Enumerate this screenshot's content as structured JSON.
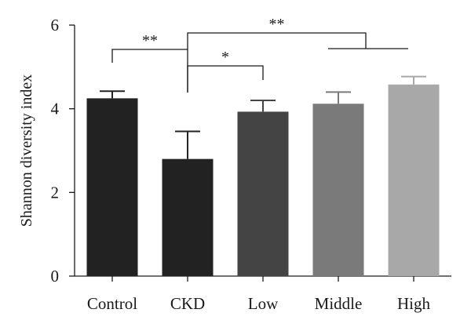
{
  "chart_data": {
    "type": "bar",
    "xlabel": "",
    "ylabel": "Shannon diversity index",
    "ylim": [
      0,
      6
    ],
    "yticks": [
      0,
      2,
      4,
      6
    ],
    "grid": false,
    "categories": [
      "Control",
      "CKD",
      "Low",
      "Middle",
      "High"
    ],
    "values": [
      4.25,
      2.8,
      3.93,
      4.12,
      4.58
    ],
    "errors": [
      0.17,
      0.66,
      0.27,
      0.28,
      0.19
    ],
    "colors": [
      "#222222",
      "#222222",
      "#444444",
      "#7a7a7a",
      "#a8a8a8"
    ],
    "significance": [
      {
        "from": "Control",
        "to": "CKD",
        "label": "**"
      },
      {
        "from": "CKD",
        "to": "Low",
        "label": "*"
      },
      {
        "from": "CKD",
        "to": [
          "Middle",
          "High"
        ],
        "label": "**"
      }
    ]
  }
}
